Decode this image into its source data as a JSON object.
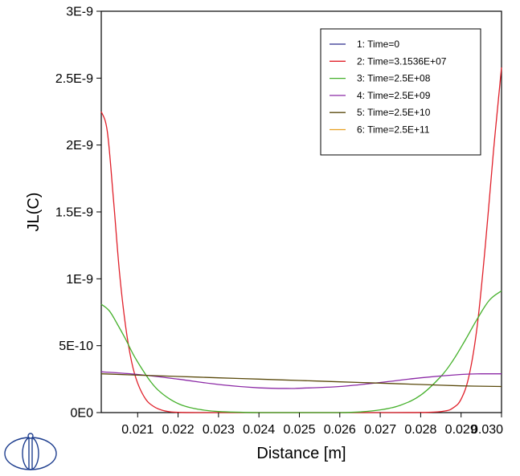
{
  "chart_data": {
    "type": "line",
    "title": "",
    "xlabel": "Distance [m]",
    "ylabel": "JL(C)",
    "xlim": [
      0.0201,
      0.03
    ],
    "ylim": [
      0,
      3e-09
    ],
    "x_ticks": [
      {
        "value": 0.021,
        "label": "0.021"
      },
      {
        "value": 0.022,
        "label": "0.022"
      },
      {
        "value": 0.023,
        "label": "0.023"
      },
      {
        "value": 0.024,
        "label": "0.024"
      },
      {
        "value": 0.025,
        "label": "0.025"
      },
      {
        "value": 0.026,
        "label": "0.026"
      },
      {
        "value": 0.027,
        "label": "0.027"
      },
      {
        "value": 0.028,
        "label": "0.028"
      },
      {
        "value": 0.029,
        "label": "0.029"
      },
      {
        "value": 0.03,
        "label": "0.030"
      }
    ],
    "y_ticks": [
      {
        "value": 0,
        "label": "0E0"
      },
      {
        "value": 5e-10,
        "label": "5E-10"
      },
      {
        "value": 1e-09,
        "label": "1E-9"
      },
      {
        "value": 1.5e-09,
        "label": "1.5E-9"
      },
      {
        "value": 2e-09,
        "label": "2E-9"
      },
      {
        "value": 2.5e-09,
        "label": "2.5E-9"
      },
      {
        "value": 3e-09,
        "label": "3E-9"
      }
    ],
    "legend_position": "top-right",
    "grid": false,
    "series": [
      {
        "name": "1:  Time=0",
        "color": "#2b2b8c",
        "x": [],
        "y": []
      },
      {
        "name": "2:  Time=3.1536E+07",
        "color": "#e0202a",
        "x": [
          0.0201,
          0.02025,
          0.0204,
          0.02055,
          0.0207,
          0.02085,
          0.021,
          0.0212,
          0.0214,
          0.0216,
          0.0218,
          0.022,
          0.0225,
          0.023,
          0.025,
          0.027,
          0.0282,
          0.0286,
          0.0288,
          0.029,
          0.0292,
          0.0294,
          0.0296,
          0.0298,
          0.03
        ],
        "y": [
          2.25e-09,
          2.1e-09,
          1.6e-09,
          1.05e-09,
          6.5e-10,
          3.8e-10,
          2.2e-10,
          1e-10,
          4.5e-11,
          1.8e-11,
          6e-12,
          2e-12,
          0,
          0,
          0,
          0,
          2e-12,
          1.2e-11,
          3.5e-11,
          1e-10,
          2.8e-10,
          6.5e-10,
          1.25e-09,
          1.95e-09,
          2.58e-09
        ]
      },
      {
        "name": "3:  Time=2.5E+08",
        "color": "#44b02a",
        "x": [
          0.0201,
          0.0203,
          0.0205,
          0.0207,
          0.0209,
          0.0211,
          0.0213,
          0.0215,
          0.0218,
          0.0221,
          0.0225,
          0.023,
          0.024,
          0.025,
          0.026,
          0.0265,
          0.027,
          0.0275,
          0.028,
          0.0285,
          0.0288,
          0.0291,
          0.0294,
          0.0297,
          0.03
        ],
        "y": [
          8.1e-10,
          7.6e-10,
          6.6e-10,
          5.5e-10,
          4.3e-10,
          3.3e-10,
          2.4e-10,
          1.7e-10,
          1e-10,
          5.5e-11,
          2.5e-11,
          8e-12,
          0,
          0,
          0,
          5e-12,
          2e-11,
          5.5e-11,
          1.3e-10,
          2.7e-10,
          3.9e-10,
          5.4e-10,
          7e-10,
          8.4e-10,
          9.1e-10
        ]
      },
      {
        "name": "4:  Time=2.5E+09",
        "color": "#8c2aa6",
        "x": [
          0.0201,
          0.021,
          0.022,
          0.023,
          0.024,
          0.0248,
          0.025,
          0.026,
          0.027,
          0.028,
          0.029,
          0.0295,
          0.03
        ],
        "y": [
          3.05e-10,
          2.85e-10,
          2.5e-10,
          2.1e-10,
          1.85e-10,
          1.8e-10,
          1.82e-10,
          1.95e-10,
          2.25e-10,
          2.6e-10,
          2.85e-10,
          2.9e-10,
          2.9e-10
        ]
      },
      {
        "name": "5:  Time=2.5E+10",
        "color": "#5a4a0c",
        "x": [
          0.0201,
          0.021,
          0.022,
          0.023,
          0.024,
          0.025,
          0.026,
          0.027,
          0.028,
          0.029,
          0.03
        ],
        "y": [
          2.9e-10,
          2.8e-10,
          2.7e-10,
          2.6e-10,
          2.5e-10,
          2.4e-10,
          2.3e-10,
          2.2e-10,
          2.1e-10,
          2e-10,
          1.95e-10
        ]
      },
      {
        "name": "6:  Time=2.5E+11",
        "color": "#e8a020",
        "x": [],
        "y": []
      }
    ]
  }
}
